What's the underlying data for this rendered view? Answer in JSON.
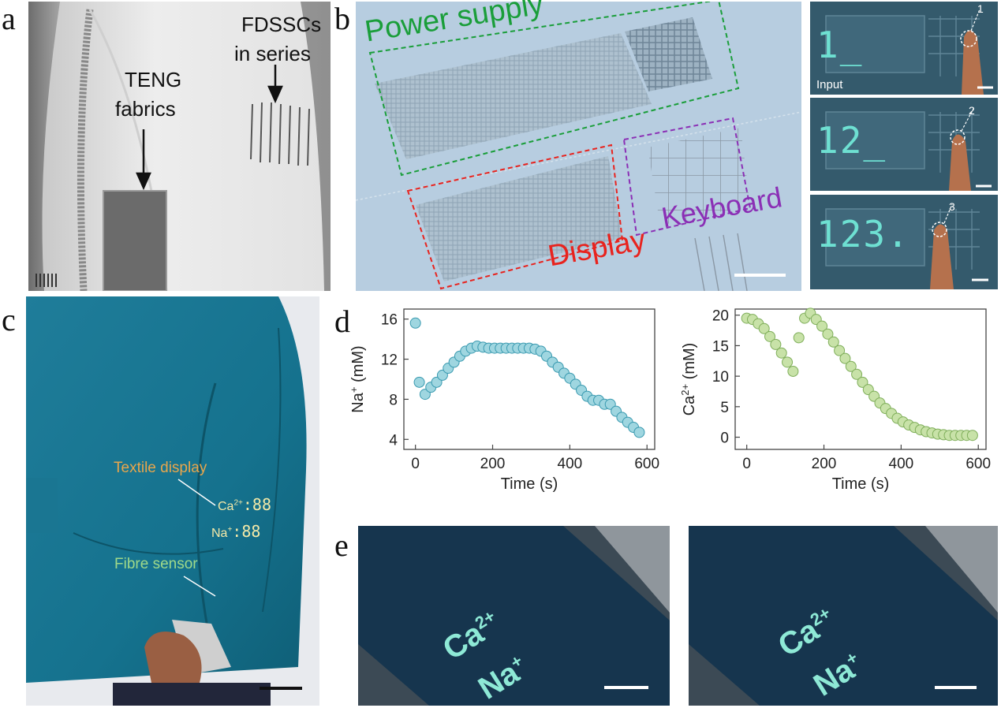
{
  "panels": {
    "a": {
      "letter": "a",
      "teng_line1": "TENG",
      "teng_line2": "fabrics",
      "fdsscs_line1": "FDSSCs",
      "fdsscs_line2": "in series"
    },
    "b": {
      "letter": "b",
      "power_supply": "Power supply",
      "display": "Display",
      "keyboard": "Keyboard",
      "input": "Input",
      "digits": [
        "1_",
        "12_",
        "123."
      ],
      "step_numbers": [
        "1",
        "2",
        "3"
      ],
      "colors": {
        "power": "#1a9e3a",
        "display": "#e8231e",
        "keyboard": "#8b2fb5"
      }
    },
    "c": {
      "letter": "c",
      "textile_display": "Textile display",
      "fibre_sensor": "Fibre sensor",
      "ca_readout": "Ca",
      "ca_sup": "2+",
      "na_readout": "Na",
      "na_sup": "+",
      "readout_digits": ":88"
    },
    "d": {
      "letter": "d"
    },
    "e": {
      "letter": "e",
      "ca_text": "Ca",
      "ca_sup": "2+",
      "na_text": "Na",
      "na_sup": "+"
    }
  },
  "chart_data": [
    {
      "type": "scatter",
      "ylabel_main": "Na",
      "ylabel_sup": "+",
      "ylabel_unit": " (mM)",
      "xlabel": "Time (s)",
      "xlim": [
        -30,
        620
      ],
      "ylim": [
        3,
        17
      ],
      "xticks": [
        0,
        200,
        400,
        600
      ],
      "yticks": [
        4,
        8,
        12,
        16
      ],
      "marker_color": "#9fd6e0",
      "marker_edge": "#3a9ab0",
      "x": [
        0,
        10,
        25,
        40,
        55,
        70,
        85,
        100,
        115,
        130,
        145,
        160,
        175,
        190,
        205,
        220,
        235,
        250,
        265,
        280,
        295,
        310,
        325,
        340,
        355,
        370,
        385,
        400,
        415,
        430,
        445,
        460,
        475,
        490,
        505,
        520,
        535,
        550,
        565,
        580
      ],
      "y": [
        15.6,
        9.7,
        8.5,
        9.2,
        9.7,
        10.4,
        11.1,
        11.7,
        12.3,
        12.8,
        13.1,
        13.3,
        13.2,
        13.1,
        13.1,
        13.1,
        13.1,
        13.1,
        13.1,
        13.1,
        13.1,
        13.0,
        12.8,
        12.3,
        11.7,
        11.2,
        10.6,
        10.1,
        9.5,
        8.9,
        8.3,
        7.9,
        7.9,
        7.5,
        7.5,
        6.8,
        6.2,
        5.7,
        5.2,
        4.7
      ]
    },
    {
      "type": "scatter",
      "ylabel_main": "Ca",
      "ylabel_sup": "2+",
      "ylabel_unit": " (mM)",
      "xlabel": "Time (s)",
      "xlim": [
        -30,
        620
      ],
      "ylim": [
        -2,
        21
      ],
      "xticks": [
        0,
        200,
        400,
        600
      ],
      "yticks": [
        0,
        5,
        10,
        15,
        20
      ],
      "marker_color": "#c8e2a8",
      "marker_edge": "#7fae5a",
      "x": [
        0,
        15,
        30,
        45,
        60,
        75,
        90,
        105,
        120,
        135,
        150,
        165,
        180,
        195,
        210,
        225,
        240,
        255,
        270,
        285,
        300,
        315,
        330,
        345,
        360,
        375,
        390,
        405,
        420,
        435,
        450,
        465,
        480,
        495,
        510,
        525,
        540,
        555,
        570,
        585
      ],
      "y": [
        19.5,
        19.3,
        18.6,
        17.8,
        16.5,
        15.2,
        13.8,
        12.3,
        10.8,
        16.3,
        19.5,
        20.3,
        19.3,
        18.2,
        16.9,
        15.6,
        14.2,
        12.9,
        11.6,
        10.3,
        9.0,
        7.8,
        6.7,
        5.6,
        4.7,
        3.9,
        3.1,
        2.5,
        2.0,
        1.6,
        1.2,
        0.9,
        0.7,
        0.5,
        0.4,
        0.3,
        0.3,
        0.3,
        0.3,
        0.3
      ]
    }
  ]
}
